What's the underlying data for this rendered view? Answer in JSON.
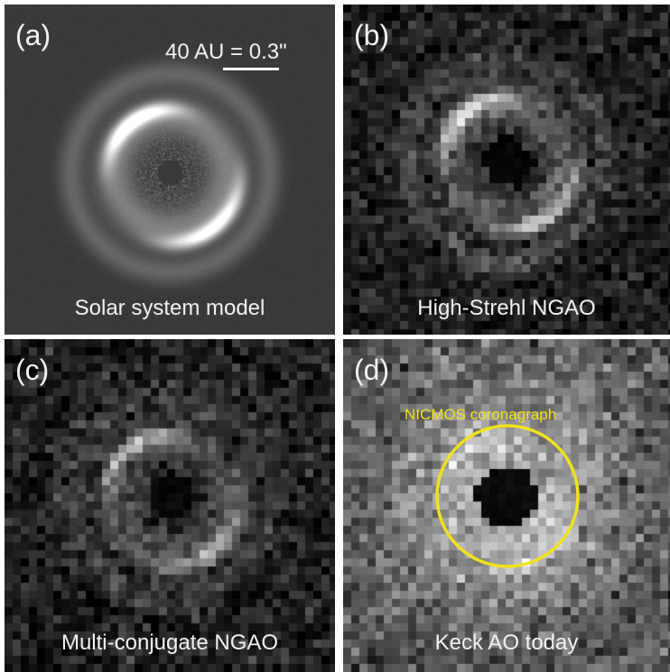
{
  "panels": {
    "a": {
      "letter": "(a)",
      "caption": "Solar system model",
      "scale_label": "40 AU = 0.3\""
    },
    "b": {
      "letter": "(b)",
      "caption": "High-Strehl NGAO"
    },
    "c": {
      "letter": "(c)",
      "caption": "Multi-conjugate NGAO"
    },
    "d": {
      "letter": "(d)",
      "caption": "Keck AO today",
      "overlay_label": "NICMOS coronagraph"
    }
  },
  "colors": {
    "background": "#ffffff",
    "text": "#f2f2f2",
    "coronagraph": "#f0e21e"
  }
}
